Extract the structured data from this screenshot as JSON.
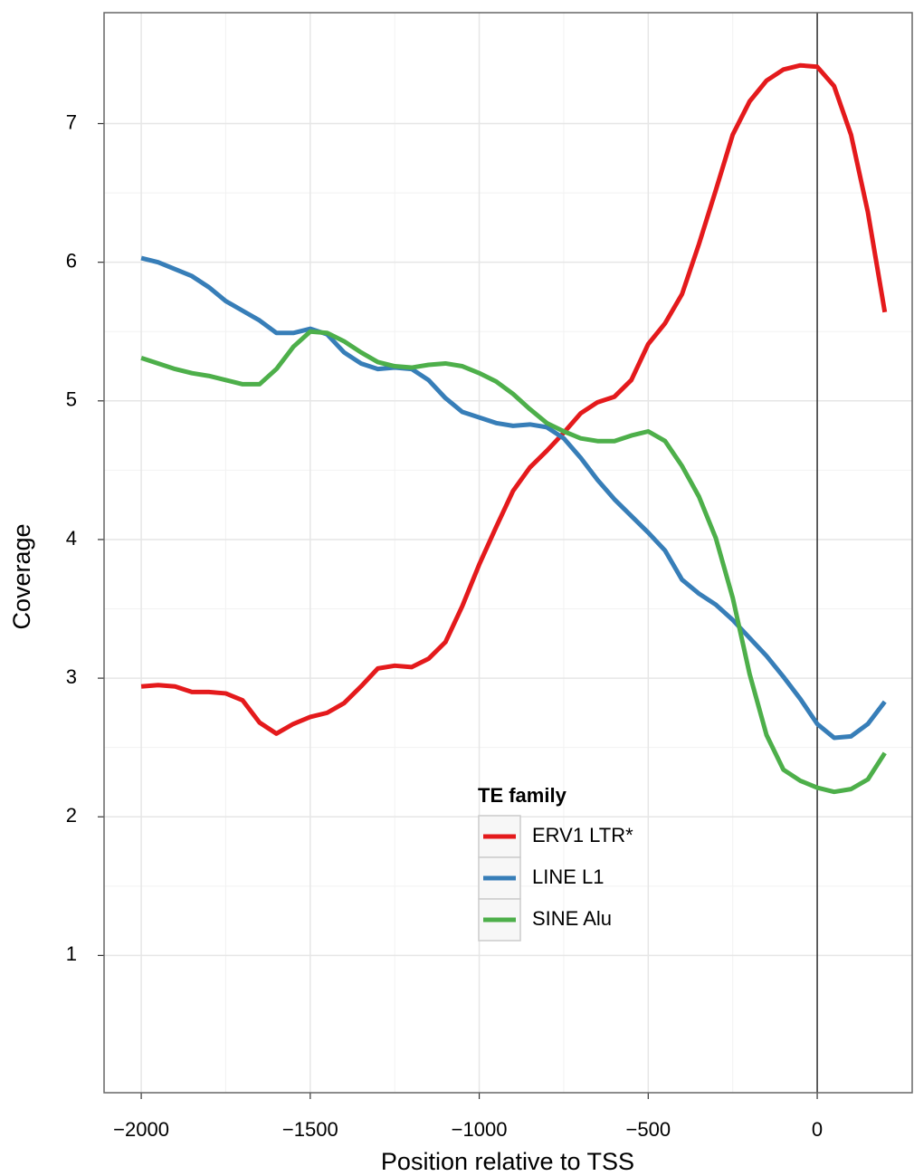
{
  "chart_data": {
    "type": "line",
    "x_label": "Position relative to TSS",
    "y_label": "Coverage",
    "x": [
      -2000,
      -1950,
      -1900,
      -1850,
      -1800,
      -1750,
      -1700,
      -1650,
      -1600,
      -1550,
      -1500,
      -1450,
      -1400,
      -1350,
      -1300,
      -1250,
      -1200,
      -1150,
      -1100,
      -1050,
      -1000,
      -950,
      -900,
      -850,
      -800,
      -750,
      -700,
      -650,
      -600,
      -550,
      -500,
      -450,
      -400,
      -350,
      -300,
      -250,
      -200,
      -150,
      -100,
      -50,
      0,
      50,
      100,
      150,
      200
    ],
    "series": [
      {
        "name": "ERV1 LTR*",
        "color": "#e41a1c",
        "values": [
          2.94,
          2.95,
          2.94,
          2.9,
          2.9,
          2.89,
          2.84,
          2.68,
          2.6,
          2.67,
          2.72,
          2.75,
          2.82,
          2.94,
          3.07,
          3.09,
          3.08,
          3.14,
          3.26,
          3.52,
          3.82,
          4.09,
          4.35,
          4.52,
          4.64,
          4.77,
          4.91,
          4.99,
          5.03,
          5.15,
          5.41,
          5.56,
          5.77,
          6.13,
          6.52,
          6.92,
          7.16,
          7.31,
          7.39,
          7.42,
          7.41,
          7.27,
          6.92,
          6.36,
          5.64
        ]
      },
      {
        "name": "LINE L1",
        "color": "#377eb8",
        "values": [
          6.03,
          6.0,
          5.95,
          5.9,
          5.82,
          5.72,
          5.65,
          5.58,
          5.49,
          5.49,
          5.52,
          5.48,
          5.35,
          5.27,
          5.23,
          5.24,
          5.23,
          5.15,
          5.02,
          4.92,
          4.88,
          4.84,
          4.82,
          4.83,
          4.81,
          4.73,
          4.59,
          4.43,
          4.29,
          4.17,
          4.05,
          3.92,
          3.71,
          3.61,
          3.53,
          3.42,
          3.29,
          3.16,
          3.01,
          2.85,
          2.67,
          2.57,
          2.58,
          2.67,
          2.83
        ]
      },
      {
        "name": "SINE Alu",
        "color": "#4daf4a",
        "values": [
          5.31,
          5.27,
          5.23,
          5.2,
          5.18,
          5.15,
          5.12,
          5.12,
          5.23,
          5.39,
          5.5,
          5.49,
          5.43,
          5.35,
          5.28,
          5.25,
          5.24,
          5.26,
          5.27,
          5.25,
          5.2,
          5.14,
          5.05,
          4.94,
          4.84,
          4.78,
          4.73,
          4.71,
          4.71,
          4.75,
          4.78,
          4.71,
          4.53,
          4.31,
          4.01,
          3.58,
          3.03,
          2.59,
          2.34,
          2.26,
          2.21,
          2.18,
          2.2,
          2.27,
          2.46
        ]
      }
    ],
    "legend_title": "TE family",
    "xlim": [
      -2110,
      281
    ],
    "ylim": [
      0.01,
      7.8
    ],
    "xticks": [
      {
        "value": -2000,
        "label": "−2000"
      },
      {
        "value": -1500,
        "label": "−1500"
      },
      {
        "value": -1000,
        "label": "−1000"
      },
      {
        "value": -500,
        "label": "−500"
      },
      0
    ],
    "yticks": [
      1,
      2,
      3,
      4,
      5,
      6,
      7
    ],
    "grid": true,
    "vline": 0
  }
}
